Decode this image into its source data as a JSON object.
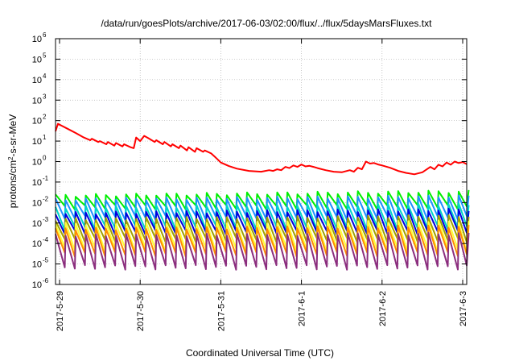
{
  "chart_data": {
    "type": "line",
    "title": "/data/run/goesPlots/archive/2017-06-03/02:00/flux/../flux/5daysMarsFluxes.txt",
    "xlabel": "Coordinated Universal Time (UTC)",
    "ylabel": "protons/cm2-s-sr-MeV",
    "ylabel_main": "protons/cm",
    "ylabel_sup": "2",
    "ylabel_rest": "-s-sr-MeV",
    "y_scale": "log",
    "ylim": [
      1e-06,
      1000000.0
    ],
    "xlim": [
      -0.05,
      5.05
    ],
    "grid": true,
    "y_ticks": [
      {
        "value": -6,
        "base": "10",
        "exp": "-6"
      },
      {
        "value": -5,
        "base": "10",
        "exp": "-5"
      },
      {
        "value": -4,
        "base": "10",
        "exp": "-4"
      },
      {
        "value": -3,
        "base": "10",
        "exp": "-3"
      },
      {
        "value": -2,
        "base": "10",
        "exp": "-2"
      },
      {
        "value": -1,
        "base": "10",
        "exp": "-1"
      },
      {
        "value": 0,
        "base": "10",
        "exp": "0"
      },
      {
        "value": 1,
        "base": "10",
        "exp": "1"
      },
      {
        "value": 2,
        "base": "10",
        "exp": "2"
      },
      {
        "value": 3,
        "base": "10",
        "exp": "3"
      },
      {
        "value": 4,
        "base": "10",
        "exp": "4"
      },
      {
        "value": 5,
        "base": "10",
        "exp": "5"
      },
      {
        "value": 6,
        "base": "10",
        "exp": "6"
      }
    ],
    "x_ticks": [
      {
        "value": 0,
        "label": "2017-5-29"
      },
      {
        "value": 1,
        "label": "2017-5-30"
      },
      {
        "value": 2,
        "label": "2017-5-31"
      },
      {
        "value": 3,
        "label": "2017-6-1"
      },
      {
        "value": 4,
        "label": "2017-6-2"
      },
      {
        "value": 5,
        "label": "2017-6-3"
      }
    ],
    "series": [
      {
        "color": "#ff0000",
        "x": [
          -0.05,
          -0.02,
          0.1,
          0.2,
          0.3,
          0.38,
          0.4,
          0.48,
          0.5,
          0.58,
          0.6,
          0.68,
          0.7,
          0.78,
          0.8,
          0.88,
          0.92,
          0.95,
          1.0,
          1.05,
          1.1,
          1.18,
          1.2,
          1.28,
          1.3,
          1.38,
          1.4,
          1.48,
          1.5,
          1.58,
          1.6,
          1.68,
          1.7,
          1.78,
          1.8,
          1.88,
          1.92,
          1.95,
          2.0,
          2.1,
          2.2,
          2.35,
          2.5,
          2.6,
          2.65,
          2.7,
          2.75,
          2.8,
          2.85,
          2.9,
          2.95,
          3.0,
          3.05,
          3.1,
          3.15,
          3.2,
          3.3,
          3.4,
          3.5,
          3.6,
          3.65,
          3.7,
          3.75,
          3.8,
          3.85,
          3.9,
          3.95,
          4.0,
          4.1,
          4.2,
          4.3,
          4.4,
          4.5,
          4.6,
          4.65,
          4.7,
          4.75,
          4.8,
          4.85,
          4.9,
          4.95,
          5.0,
          5.05
        ],
        "y": [
          30,
          70,
          40,
          25,
          15,
          11,
          13,
          9,
          10,
          7,
          9,
          6,
          8,
          5.5,
          7,
          5,
          4.5,
          15,
          10,
          18,
          14,
          9,
          11,
          7,
          9,
          5.5,
          7,
          4.5,
          6,
          3.5,
          5,
          3,
          4.5,
          3,
          3.5,
          2.5,
          1.8,
          1.4,
          0.9,
          0.6,
          0.45,
          0.35,
          0.32,
          0.38,
          0.35,
          0.42,
          0.38,
          0.55,
          0.48,
          0.65,
          0.55,
          0.72,
          0.58,
          0.62,
          0.55,
          0.48,
          0.38,
          0.32,
          0.3,
          0.38,
          0.32,
          0.5,
          0.42,
          1.0,
          0.8,
          0.85,
          0.72,
          0.65,
          0.5,
          0.35,
          0.28,
          0.24,
          0.3,
          0.55,
          0.42,
          0.7,
          0.58,
          0.9,
          0.7,
          1.0,
          0.85,
          0.95,
          0.75
        ]
      },
      {
        "color": "#00ee00",
        "pattern": "sawtooth",
        "period": 0.125,
        "lo": 0.006,
        "hi": 0.022,
        "hi_end": 0.035
      },
      {
        "color": "#1e90ff",
        "pattern": "sawtooth",
        "period": 0.125,
        "lo": 0.0018,
        "hi": 0.014,
        "hi_end": 0.02
      },
      {
        "color": "#00d5c8",
        "pattern": "sawtooth",
        "period": 0.125,
        "lo": 0.0006,
        "hi": 0.006,
        "hi_end": 0.008
      },
      {
        "color": "#0000dd",
        "pattern": "sawtooth",
        "period": 0.125,
        "lo": 0.00035,
        "hi": 0.003,
        "hi_end": 0.0045
      },
      {
        "color": "#a0a000",
        "pattern": "sawtooth",
        "period": 0.125,
        "lo": 0.00015,
        "hi": 0.0015,
        "hi_end": 0.0022
      },
      {
        "color": "#ffff33",
        "pattern": "sawtooth",
        "period": 0.125,
        "lo": 5e-05,
        "hi": 0.0009,
        "hi_end": 0.0012
      },
      {
        "color": "#ff8c00",
        "pattern": "sawtooth",
        "period": 0.125,
        "lo": 3e-05,
        "hi": 0.0005,
        "hi_end": 0.0007
      },
      {
        "color": "#8b2e7e",
        "pattern": "sawtooth",
        "period": 0.125,
        "lo": 7e-06,
        "hi": 0.00025,
        "hi_end": 0.0003
      }
    ]
  }
}
